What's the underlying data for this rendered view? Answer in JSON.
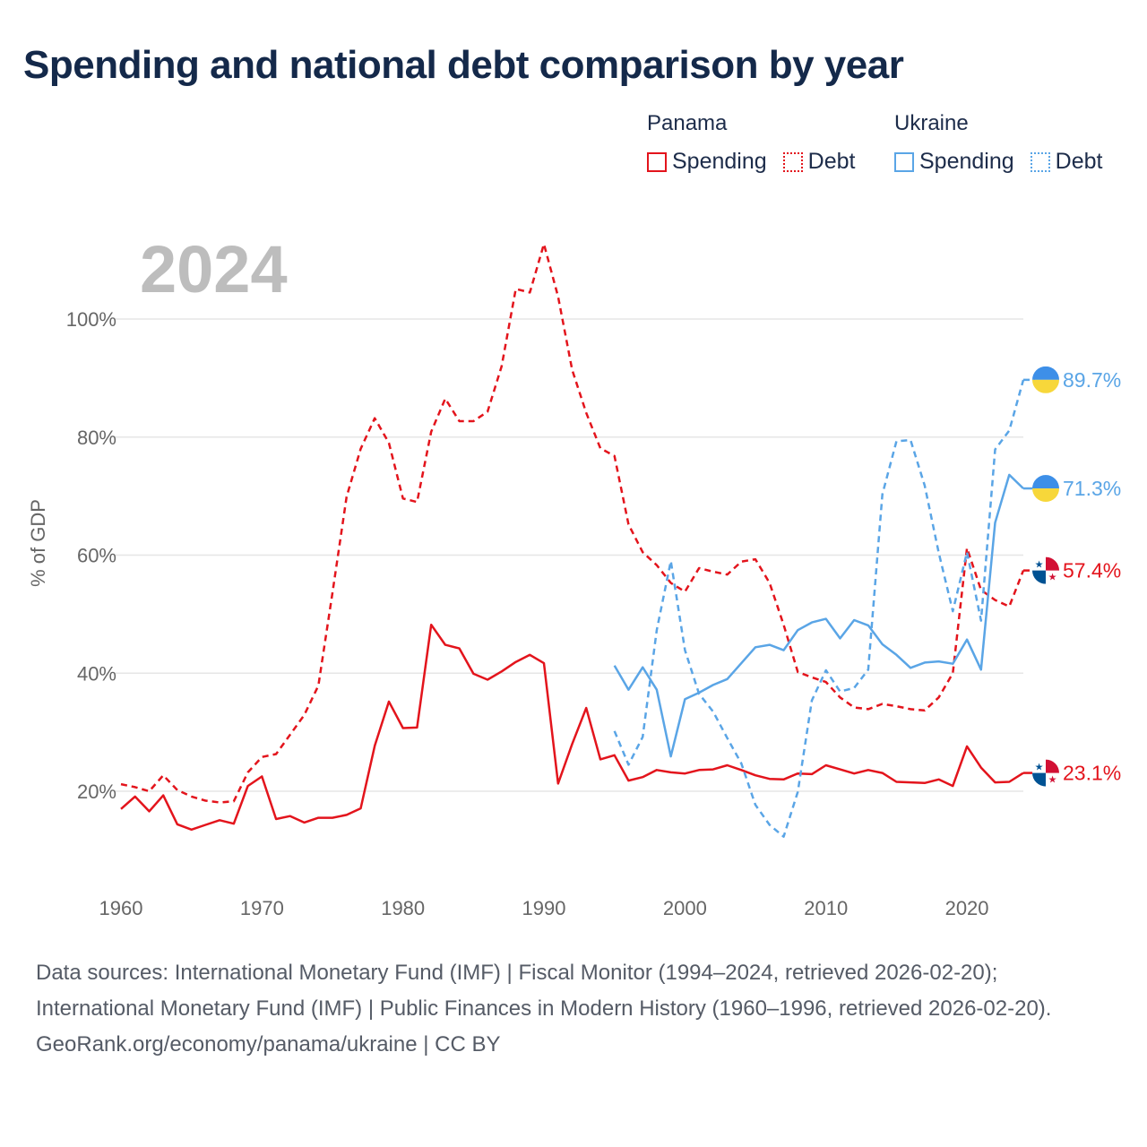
{
  "title": "Spending and national debt comparison by year",
  "highlight_year": "2024",
  "legend": {
    "groups": [
      {
        "name": "Panama",
        "items": [
          {
            "label": "Spending",
            "color": "#e3141c",
            "style": "solid"
          },
          {
            "label": "Debt",
            "color": "#e3141c",
            "style": "dotted"
          }
        ]
      },
      {
        "name": "Ukraine",
        "items": [
          {
            "label": "Spending",
            "color": "#5aa5e6",
            "style": "solid"
          },
          {
            "label": "Debt",
            "color": "#5aa5e6",
            "style": "dotted"
          }
        ]
      }
    ]
  },
  "footer": {
    "sources": "Data sources: International Monetary Fund (IMF) | Fiscal Monitor (1994–2024, retrieved 2026-02-20); International Monetary Fund (IMF) | Public Finances in Modern History (1960–1996, retrieved 2026-02-20).",
    "credit": "GeoRank.org/economy/panama/ukraine | CC BY"
  },
  "chart_data": {
    "type": "line",
    "ylabel": "% of GDP",
    "xlabel": "",
    "xlim": [
      1960,
      2024
    ],
    "ylim": [
      5,
      120
    ],
    "xticks": [
      1960,
      1970,
      1980,
      1990,
      2000,
      2010,
      2020
    ],
    "xtick_labels": [
      "1960",
      "1970",
      "1980",
      "1990",
      "2000",
      "2010",
      "2020"
    ],
    "yticks": [
      20,
      40,
      60,
      80,
      100
    ],
    "ytick_labels": [
      "20%",
      "40%",
      "60%",
      "80%",
      "100%"
    ],
    "grid": true,
    "series": [
      {
        "name": "Panama Spending",
        "color": "#e3141c",
        "dash": "solid",
        "end_label": "23.1%",
        "end_value": 23.1,
        "flag": "panama",
        "x": [
          1960,
          1961,
          1962,
          1963,
          1964,
          1965,
          1966,
          1967,
          1968,
          1969,
          1970,
          1971,
          1972,
          1973,
          1974,
          1975,
          1976,
          1977,
          1978,
          1979,
          1980,
          1981,
          1982,
          1983,
          1984,
          1985,
          1986,
          1987,
          1988,
          1989,
          1990,
          1991,
          1992,
          1993,
          1994,
          1995,
          1996,
          1997,
          1998,
          1999,
          2000,
          2001,
          2002,
          2003,
          2004,
          2005,
          2006,
          2007,
          2008,
          2009,
          2010,
          2011,
          2012,
          2013,
          2014,
          2015,
          2016,
          2017,
          2018,
          2019,
          2020,
          2021,
          2022,
          2023,
          2024
        ],
        "values": [
          17.0,
          19.1,
          16.6,
          19.3,
          14.4,
          13.5,
          14.3,
          15.1,
          14.5,
          20.9,
          22.5,
          15.3,
          15.8,
          14.7,
          15.5,
          15.5,
          16.0,
          17.1,
          27.7,
          35.2,
          30.7,
          30.8,
          48.2,
          44.8,
          44.2,
          39.9,
          38.9,
          40.3,
          41.9,
          43.1,
          41.7,
          21.3,
          28.0,
          34.1,
          25.4,
          26.1,
          21.8,
          22.4,
          23.6,
          23.2,
          23.0,
          23.6,
          23.7,
          24.4,
          23.6,
          22.7,
          22.1,
          22.0,
          23.0,
          22.9,
          24.4,
          23.7,
          23.0,
          23.6,
          23.1,
          21.6,
          21.5,
          21.4,
          22.0,
          20.9,
          27.6,
          24.0,
          21.5,
          21.6,
          23.1
        ]
      },
      {
        "name": "Panama Debt",
        "color": "#e3141c",
        "dash": "dashed",
        "end_label": "57.4%",
        "end_value": 57.4,
        "flag": "panama",
        "x": [
          1960,
          1961,
          1962,
          1963,
          1964,
          1965,
          1966,
          1967,
          1968,
          1969,
          1970,
          1971,
          1972,
          1973,
          1974,
          1975,
          1976,
          1977,
          1978,
          1979,
          1980,
          1981,
          1982,
          1983,
          1984,
          1985,
          1986,
          1987,
          1988,
          1989,
          1990,
          1991,
          1992,
          1993,
          1994,
          1995,
          1996,
          1997,
          1998,
          1999,
          2000,
          2001,
          2002,
          2003,
          2004,
          2005,
          2006,
          2007,
          2008,
          2009,
          2010,
          2011,
          2012,
          2013,
          2014,
          2015,
          2016,
          2017,
          2018,
          2019,
          2020,
          2021,
          2022,
          2023,
          2024
        ],
        "values": [
          21.2,
          20.7,
          20.0,
          22.7,
          20.2,
          19.1,
          18.4,
          18.1,
          18.3,
          23.2,
          25.8,
          26.3,
          29.6,
          32.9,
          37.9,
          53.6,
          69.9,
          78.0,
          83.2,
          79.0,
          69.6,
          69.0,
          80.9,
          86.5,
          82.7,
          82.7,
          84.3,
          92.0,
          105.1,
          104.5,
          112.7,
          103.8,
          91.4,
          84.1,
          78.1,
          76.8,
          65.2,
          60.5,
          58.3,
          55.3,
          53.8,
          57.8,
          57.2,
          56.7,
          58.9,
          59.3,
          55.3,
          48.2,
          40.2,
          39.3,
          38.5,
          35.9,
          34.2,
          33.9,
          34.8,
          34.4,
          33.9,
          33.7,
          35.9,
          40.0,
          61.2,
          54.1,
          52.4,
          51.3,
          57.4
        ]
      },
      {
        "name": "Ukraine Spending",
        "color": "#5aa5e6",
        "dash": "solid",
        "end_label": "71.3%",
        "end_value": 71.3,
        "flag": "ukraine",
        "x": [
          1995,
          1996,
          1997,
          1998,
          1999,
          2000,
          2001,
          2002,
          2003,
          2004,
          2005,
          2006,
          2007,
          2008,
          2009,
          2010,
          2011,
          2012,
          2013,
          2014,
          2015,
          2016,
          2017,
          2018,
          2019,
          2020,
          2021,
          2022,
          2023,
          2024
        ],
        "values": [
          41.3,
          37.2,
          41.0,
          37.2,
          25.9,
          35.6,
          36.7,
          38.0,
          39.0,
          41.7,
          44.4,
          44.8,
          43.9,
          47.3,
          48.6,
          49.2,
          45.9,
          49.0,
          48.1,
          44.9,
          43.1,
          40.9,
          41.8,
          42.0,
          41.6,
          45.7,
          40.6,
          65.5,
          73.6,
          71.3
        ]
      },
      {
        "name": "Ukraine Debt",
        "color": "#5aa5e6",
        "dash": "dashed",
        "end_label": "89.7%",
        "end_value": 89.7,
        "flag": "ukraine",
        "x": [
          1995,
          1996,
          1997,
          1998,
          1999,
          2000,
          2001,
          2002,
          2003,
          2004,
          2005,
          2006,
          2007,
          2008,
          2009,
          2010,
          2011,
          2012,
          2013,
          2014,
          2015,
          2016,
          2017,
          2018,
          2019,
          2020,
          2021,
          2022,
          2023,
          2024
        ],
        "values": [
          30.2,
          24.5,
          29.2,
          47.3,
          59.0,
          43.9,
          36.5,
          33.5,
          29.0,
          24.7,
          17.7,
          14.3,
          12.3,
          19.9,
          35.4,
          40.5,
          36.9,
          37.5,
          40.6,
          70.3,
          79.3,
          79.5,
          71.8,
          60.4,
          50.5,
          60.5,
          48.9,
          77.9,
          81.1,
          89.7
        ]
      }
    ]
  }
}
